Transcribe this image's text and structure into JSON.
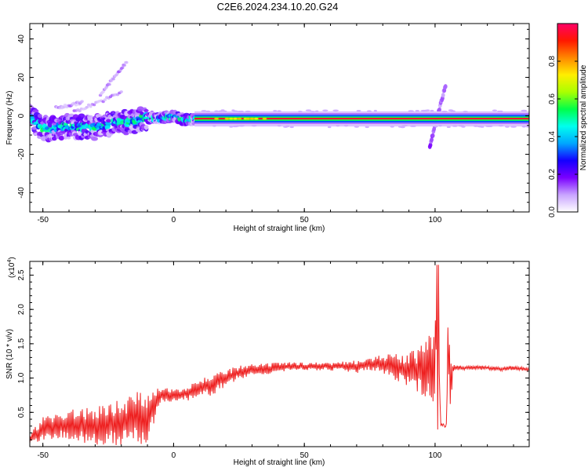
{
  "title": "C2E6.2024.234.10.20.G24",
  "chart_data": [
    {
      "type": "heatmap",
      "xlabel": "Height of straight line (km)",
      "ylabel": "Frequency (Hz)",
      "xlim": [
        -55,
        136
      ],
      "ylim": [
        -50,
        48
      ],
      "xticks": [
        -50,
        0,
        50,
        100
      ],
      "yticks": [
        -40,
        -20,
        0,
        20,
        40
      ],
      "colorbar": {
        "label": "Normalized spectral amplitude",
        "range": [
          0,
          1
        ],
        "ticks": [
          "0.0",
          "0.2",
          "0.4",
          "0.6",
          "0.8"
        ],
        "stops": [
          "#ffffff",
          "#c9a4ff",
          "#7a00ff",
          "#1400ff",
          "#00a6ff",
          "#00ffee",
          "#00ff4a",
          "#aaff00",
          "#ffee00",
          "#ff8800",
          "#ff1800",
          "#ff0066"
        ]
      },
      "ridge": [
        {
          "x": -55,
          "freq": 0.0
        },
        {
          "x": -50,
          "freq": -7.0
        },
        {
          "x": -40,
          "freq": -5.5
        },
        {
          "x": -30,
          "freq": -6.0
        },
        {
          "x": -20,
          "freq": -3.5
        },
        {
          "x": -15,
          "freq": -3.0
        },
        {
          "x": -10,
          "freq": -1.0
        },
        {
          "x": -5,
          "freq": -1.5
        },
        {
          "x": 0,
          "freq": 0.0
        },
        {
          "x": 5,
          "freq": -2.0
        },
        {
          "x": 10,
          "freq": -1.5
        },
        {
          "x": 50,
          "freq": -1.5
        },
        {
          "x": 97,
          "freq": -1.5
        },
        {
          "x": 100,
          "freq": -1.0
        },
        {
          "x": 136,
          "freq": -1.5
        }
      ],
      "branches": [
        {
          "x": [
            -38,
            -20
          ],
          "freq": [
            2,
            12
          ]
        },
        {
          "x": [
            -28,
            -18
          ],
          "freq": [
            11,
            28
          ]
        },
        {
          "x": [
            -45,
            -35
          ],
          "freq": [
            4,
            7
          ]
        },
        {
          "x": [
            98,
            104
          ],
          "freq": [
            -16,
            16
          ]
        }
      ]
    },
    {
      "type": "line",
      "xlabel": "Height of straight line (km)",
      "ylabel": "SNR (10 * v/v)",
      "yscale_label": "(x10",
      "yscale_exp": "4",
      "xlim": [
        -55,
        136
      ],
      "ylim": [
        0,
        2.7
      ],
      "xticks": [
        -50,
        0,
        50,
        100
      ],
      "yticks": [
        "0.5",
        "1.0",
        "1.5",
        "2.0",
        "2.5"
      ],
      "series": [
        {
          "color": "#ee2020",
          "x": [
            -55,
            -50,
            -45,
            -40,
            -35,
            -30,
            -25,
            -20,
            -15,
            -10,
            -5,
            0,
            5,
            10,
            15,
            20,
            25,
            30,
            35,
            40,
            45,
            50,
            55,
            60,
            65,
            70,
            75,
            80,
            85,
            90,
            95,
            98,
            100,
            101,
            102,
            103,
            104,
            105,
            106,
            107,
            110,
            115,
            120,
            125,
            130,
            136
          ],
          "y": [
            0.1,
            0.25,
            0.3,
            0.3,
            0.3,
            0.3,
            0.35,
            0.35,
            0.4,
            0.45,
            0.75,
            0.75,
            0.78,
            0.85,
            0.9,
            1.0,
            1.08,
            1.12,
            1.13,
            1.15,
            1.17,
            1.17,
            1.17,
            1.17,
            1.17,
            1.17,
            1.2,
            1.2,
            1.15,
            1.12,
            1.1,
            1.15,
            1.2,
            2.65,
            0.3,
            0.3,
            0.3,
            1.5,
            0.9,
            1.15,
            1.15,
            1.15,
            1.15,
            1.13,
            1.15,
            1.12
          ],
          "noise": [
            0.08,
            0.2,
            0.2,
            0.25,
            0.25,
            0.3,
            0.3,
            0.35,
            0.4,
            0.4,
            0.1,
            0.1,
            0.12,
            0.15,
            0.15,
            0.12,
            0.1,
            0.08,
            0.08,
            0.08,
            0.06,
            0.06,
            0.06,
            0.06,
            0.07,
            0.1,
            0.12,
            0.15,
            0.2,
            0.25,
            0.4,
            0.5,
            0.6,
            0.8,
            0.1,
            0.1,
            0.1,
            0.5,
            0.4,
            0.05,
            0.03,
            0.03,
            0.03,
            0.03,
            0.03,
            0.03
          ]
        }
      ]
    }
  ]
}
